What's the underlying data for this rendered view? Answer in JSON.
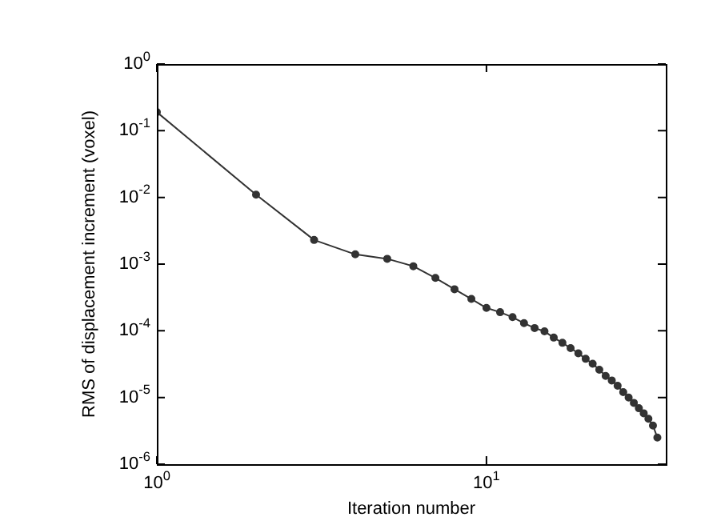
{
  "chart_data": {
    "type": "line",
    "xlabel": "Iteration number",
    "ylabel": "RMS of displacement increment (voxel)",
    "x": [
      1,
      2,
      3,
      4,
      5,
      6,
      7,
      8,
      9,
      10,
      11,
      12,
      13,
      14,
      15,
      16,
      17,
      18,
      19,
      20,
      21,
      22,
      23,
      24,
      25,
      26,
      27,
      28,
      29,
      30,
      31,
      32,
      33
    ],
    "series": [
      {
        "color": "#333333",
        "values": [
          0.19,
          0.011,
          0.0023,
          0.0014,
          0.0012,
          0.00093,
          0.00062,
          0.00042,
          0.0003,
          0.00022,
          0.00019,
          0.00016,
          0.00013,
          0.00011,
          9.8e-05,
          7.9e-05,
          6.6e-05,
          5.5e-05,
          4.6e-05,
          3.8e-05,
          3.2e-05,
          2.6e-05,
          2.1e-05,
          1.8e-05,
          1.5e-05,
          1.2e-05,
          1e-05,
          8.3e-06,
          6.9e-06,
          5.8e-06,
          4.8e-06,
          3.8e-06,
          2.5e-06
        ]
      }
    ],
    "log": "xy",
    "xlim": [
      1,
      35
    ],
    "xticks": [
      {
        "value": 1,
        "label": "10$^{0}$"
      },
      {
        "value": 10,
        "label": "10$^{1}$"
      }
    ],
    "ylim": [
      1e-06,
      1
    ],
    "yticks": [
      {
        "value": 1e-06,
        "label": "10$^{-6}$"
      },
      {
        "value": 1e-05,
        "label": "10$^{-5}$"
      },
      {
        "value": 0.0001,
        "label": "10$^{-4}$"
      },
      {
        "value": 0.001,
        "label": "10$^{-3}$"
      },
      {
        "value": 0.01,
        "label": "10$^{-2}$"
      },
      {
        "value": 0.1,
        "label": "10$^{-1}$"
      },
      {
        "value": 1,
        "label": "10$^{0}$"
      }
    ],
    "grid": false,
    "legend": false,
    "marker": "circle",
    "line_style": "solid"
  }
}
